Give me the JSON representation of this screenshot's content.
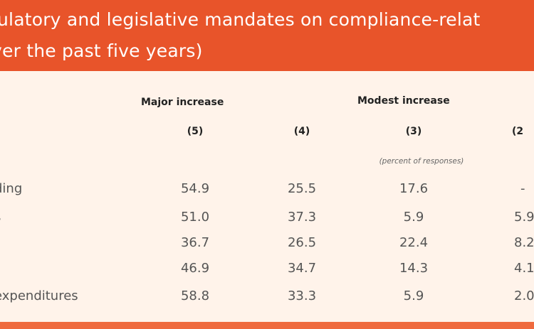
{
  "title": {
    "line1": "ulatory and legislative mandates on compliance-relat",
    "line2": "ver the past five years)"
  },
  "columns": {
    "major_increase": "Major increase",
    "modest_increase": "Modest increase",
    "c5": "(5)",
    "c4": "(4)",
    "c3": "(3)",
    "c2": "(2",
    "note": "(percent of responses)"
  },
  "rows": [
    {
      "label": "ding",
      "v5": "54.9",
      "v4": "25.5",
      "v3": "17.6",
      "v2": "-"
    },
    {
      "label": "s",
      "v5": "51.0",
      "v4": "37.3",
      "v3": "5.9",
      "v2": "5.9"
    },
    {
      "label": "",
      "v5": "36.7",
      "v4": "26.5",
      "v3": "22.4",
      "v2": "8.2"
    },
    {
      "label": "",
      "v5": "46.9",
      "v4": "34.7",
      "v3": "14.3",
      "v2": "4.1"
    },
    {
      "label": "expenditures",
      "v5": "58.8",
      "v4": "33.3",
      "v3": "5.9",
      "v2": "2.0"
    }
  ]
}
